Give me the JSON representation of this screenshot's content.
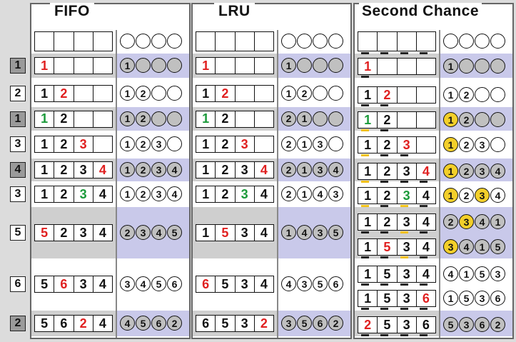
{
  "titles": {
    "fifo": "FIFO",
    "lru": "LRU",
    "second_chance": "Second Chance"
  },
  "references": [
    {
      "label": "1",
      "shade": true
    },
    {
      "label": "2",
      "shade": false
    },
    {
      "label": "1",
      "shade": true
    },
    {
      "label": "3",
      "shade": false
    },
    {
      "label": "4",
      "shade": true
    },
    {
      "label": "3",
      "shade": false
    },
    {
      "label": "5",
      "shade": false
    },
    {
      "label": "6",
      "shade": false
    },
    {
      "label": "2",
      "shade": true
    }
  ],
  "fifo": {
    "rows": [
      {
        "frames": [
          {
            "v": "1",
            "c": "red"
          },
          {
            "v": ""
          },
          {
            "v": ""
          },
          {
            "v": ""
          }
        ],
        "circles": [
          "1",
          "",
          "",
          ""
        ]
      },
      {
        "frames": [
          {
            "v": "1"
          },
          {
            "v": "2",
            "c": "red"
          },
          {
            "v": ""
          },
          {
            "v": ""
          }
        ],
        "circles": [
          "1",
          "2",
          "",
          ""
        ]
      },
      {
        "frames": [
          {
            "v": "1",
            "c": "green"
          },
          {
            "v": "2"
          },
          {
            "v": ""
          },
          {
            "v": ""
          }
        ],
        "circles": [
          "1",
          "2",
          "",
          ""
        ]
      },
      {
        "frames": [
          {
            "v": "1"
          },
          {
            "v": "2"
          },
          {
            "v": "3",
            "c": "red"
          },
          {
            "v": ""
          }
        ],
        "circles": [
          "1",
          "2",
          "3",
          ""
        ]
      },
      {
        "frames": [
          {
            "v": "1"
          },
          {
            "v": "2"
          },
          {
            "v": "3"
          },
          {
            "v": "4",
            "c": "red"
          }
        ],
        "circles": [
          "1",
          "2",
          "3",
          "4"
        ]
      },
      {
        "frames": [
          {
            "v": "1"
          },
          {
            "v": "2"
          },
          {
            "v": "3",
            "c": "green"
          },
          {
            "v": "4"
          }
        ],
        "circles": [
          "1",
          "2",
          "3",
          "4"
        ]
      },
      {
        "frames": [
          {
            "v": "5",
            "c": "red"
          },
          {
            "v": "2"
          },
          {
            "v": "3"
          },
          {
            "v": "4"
          }
        ],
        "circles": [
          "2",
          "3",
          "4",
          "5"
        ]
      },
      {
        "frames": [
          {
            "v": "5"
          },
          {
            "v": "6",
            "c": "red"
          },
          {
            "v": "3"
          },
          {
            "v": "4"
          }
        ],
        "circles": [
          "3",
          "4",
          "5",
          "6"
        ]
      },
      {
        "frames": [
          {
            "v": "5"
          },
          {
            "v": "6"
          },
          {
            "v": "2",
            "c": "red"
          },
          {
            "v": "4"
          }
        ],
        "circles": [
          "4",
          "5",
          "6",
          "2"
        ]
      }
    ]
  },
  "lru": {
    "rows": [
      {
        "frames": [
          {
            "v": "1",
            "c": "red"
          },
          {
            "v": ""
          },
          {
            "v": ""
          },
          {
            "v": ""
          }
        ],
        "circles": [
          "1",
          "",
          "",
          ""
        ]
      },
      {
        "frames": [
          {
            "v": "1"
          },
          {
            "v": "2",
            "c": "red"
          },
          {
            "v": ""
          },
          {
            "v": ""
          }
        ],
        "circles": [
          "1",
          "2",
          "",
          ""
        ]
      },
      {
        "frames": [
          {
            "v": "1",
            "c": "green"
          },
          {
            "v": "2"
          },
          {
            "v": ""
          },
          {
            "v": ""
          }
        ],
        "circles": [
          "2",
          "1",
          "",
          ""
        ]
      },
      {
        "frames": [
          {
            "v": "1"
          },
          {
            "v": "2"
          },
          {
            "v": "3",
            "c": "red"
          },
          {
            "v": ""
          }
        ],
        "circles": [
          "2",
          "1",
          "3",
          ""
        ]
      },
      {
        "frames": [
          {
            "v": "1"
          },
          {
            "v": "2"
          },
          {
            "v": "3"
          },
          {
            "v": "4",
            "c": "red"
          }
        ],
        "circles": [
          "2",
          "1",
          "3",
          "4"
        ]
      },
      {
        "frames": [
          {
            "v": "1"
          },
          {
            "v": "2"
          },
          {
            "v": "3",
            "c": "green"
          },
          {
            "v": "4"
          }
        ],
        "circles": [
          "2",
          "1",
          "4",
          "3"
        ]
      },
      {
        "frames": [
          {
            "v": "1"
          },
          {
            "v": "5",
            "c": "red"
          },
          {
            "v": "3"
          },
          {
            "v": "4"
          }
        ],
        "circles": [
          "1",
          "4",
          "3",
          "5"
        ]
      },
      {
        "frames": [
          {
            "v": "6",
            "c": "red"
          },
          {
            "v": "5"
          },
          {
            "v": "3"
          },
          {
            "v": "4"
          }
        ],
        "circles": [
          "4",
          "3",
          "5",
          "6"
        ]
      },
      {
        "frames": [
          {
            "v": "6"
          },
          {
            "v": "5"
          },
          {
            "v": "3"
          },
          {
            "v": "2",
            "c": "red"
          }
        ],
        "circles": [
          "3",
          "5",
          "6",
          "2"
        ]
      }
    ]
  },
  "second_chance": {
    "rows": [
      {
        "frames": [
          {
            "v": "1",
            "c": "red",
            "b": 0
          },
          {
            "v": ""
          },
          {
            "v": ""
          },
          {
            "v": ""
          }
        ],
        "circles": [
          "1",
          "",
          "",
          ""
        ],
        "yellow": []
      },
      {
        "frames": [
          {
            "v": "1",
            "b": 0
          },
          {
            "v": "2",
            "c": "red",
            "b": 0
          },
          {
            "v": ""
          },
          {
            "v": ""
          }
        ],
        "circles": [
          "1",
          "2",
          "",
          ""
        ],
        "yellow": []
      },
      {
        "frames": [
          {
            "v": "1",
            "c": "green",
            "b": 1
          },
          {
            "v": "2",
            "b": 0
          },
          {
            "v": ""
          },
          {
            "v": ""
          }
        ],
        "circles": [
          "1",
          "2",
          "",
          ""
        ],
        "yellow": [
          0
        ]
      },
      {
        "frames": [
          {
            "v": "1",
            "b": 1
          },
          {
            "v": "2",
            "b": 0
          },
          {
            "v": "3",
            "c": "red",
            "b": 0
          },
          {
            "v": ""
          }
        ],
        "circles": [
          "1",
          "2",
          "3",
          ""
        ],
        "yellow": [
          0
        ]
      },
      {
        "frames": [
          {
            "v": "1",
            "b": 1
          },
          {
            "v": "2",
            "b": 0
          },
          {
            "v": "3",
            "b": 0
          },
          {
            "v": "4",
            "c": "red",
            "b": 0
          }
        ],
        "circles": [
          "1",
          "2",
          "3",
          "4"
        ],
        "yellow": [
          0
        ]
      },
      {
        "frames": [
          {
            "v": "1",
            "b": 1
          },
          {
            "v": "2",
            "b": 0
          },
          {
            "v": "3",
            "c": "green",
            "b": 1
          },
          {
            "v": "4",
            "b": 0
          }
        ],
        "circles": [
          "1",
          "2",
          "3",
          "4"
        ],
        "yellow": [
          0,
          2
        ]
      },
      {
        "frames": [
          {
            "v": "1",
            "b": 0
          },
          {
            "v": "2",
            "b": 0
          },
          {
            "v": "3",
            "b": 1
          },
          {
            "v": "4",
            "b": 0
          }
        ],
        "circles": [
          "2",
          "3",
          "4",
          "1"
        ],
        "yellow": [
          1
        ]
      },
      {
        "frames": [
          {
            "v": "1",
            "b": 0
          },
          {
            "v": "5",
            "c": "red",
            "b": 0
          },
          {
            "v": "3",
            "b": 1
          },
          {
            "v": "4",
            "b": 0
          }
        ],
        "circles": [
          "3",
          "4",
          "1",
          "5"
        ],
        "yellow": [
          0
        ]
      },
      {
        "frames": [
          {
            "v": "1",
            "b": 0
          },
          {
            "v": "5",
            "b": 0
          },
          {
            "v": "3",
            "b": 0
          },
          {
            "v": "4",
            "b": 0
          }
        ],
        "circles": [
          "4",
          "1",
          "5",
          "3"
        ],
        "yellow": []
      },
      {
        "frames": [
          {
            "v": "1",
            "b": 0
          },
          {
            "v": "5",
            "b": 0
          },
          {
            "v": "3",
            "b": 0
          },
          {
            "v": "6",
            "c": "red",
            "b": 0
          }
        ],
        "circles": [
          "1",
          "5",
          "3",
          "6"
        ],
        "yellow": []
      },
      {
        "frames": [
          {
            "v": "2",
            "c": "red",
            "b": 0
          },
          {
            "v": "5",
            "b": 0
          },
          {
            "v": "3",
            "b": 0
          },
          {
            "v": "6",
            "b": 0
          }
        ],
        "circles": [
          "5",
          "3",
          "6",
          "2"
        ],
        "yellow": []
      }
    ]
  },
  "colors": {
    "red": "#e02020",
    "green": "#1b9a3a",
    "yellow": "#f3cf2a",
    "purple_band": "#c9c9ea",
    "gray_band": "#cfcfcf"
  }
}
